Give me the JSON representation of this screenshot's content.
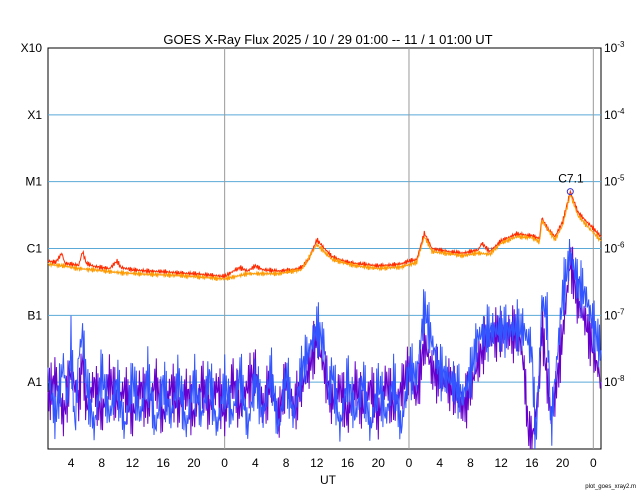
{
  "chart_data": {
    "type": "line",
    "title": "GOES X-Ray Flux   2025 / 10 / 29   01:00 -- 11 /  1   01:00   UT",
    "xlabel": "UT",
    "footer": "plot_goes_xray2.m",
    "x_range_hours": [
      0,
      72
    ],
    "x_ticks": [
      {
        "h": 3,
        "label": "4"
      },
      {
        "h": 7,
        "label": "8"
      },
      {
        "h": 11,
        "label": "12"
      },
      {
        "h": 15,
        "label": "16"
      },
      {
        "h": 19,
        "label": "20"
      },
      {
        "h": 23,
        "label": "0"
      },
      {
        "h": 27,
        "label": "4"
      },
      {
        "h": 31,
        "label": "8"
      },
      {
        "h": 35,
        "label": "12"
      },
      {
        "h": 39,
        "label": "16"
      },
      {
        "h": 43,
        "label": "20"
      },
      {
        "h": 47,
        "label": "0"
      },
      {
        "h": 51,
        "label": "4"
      },
      {
        "h": 55,
        "label": "8"
      },
      {
        "h": 59,
        "label": "12"
      },
      {
        "h": 63,
        "label": "16"
      },
      {
        "h": 67,
        "label": "20"
      },
      {
        "h": 71,
        "label": "0"
      }
    ],
    "day_boundaries_hours": [
      23,
      47,
      71
    ],
    "y_scale": "log",
    "ylim": [
      1e-09,
      0.001
    ],
    "left_labels": [
      {
        "value": 0.001,
        "label": "X10"
      },
      {
        "value": 0.0001,
        "label": "X1"
      },
      {
        "value": 1e-05,
        "label": "M1"
      },
      {
        "value": 1e-06,
        "label": "C1"
      },
      {
        "value": 1e-07,
        "label": "B1"
      },
      {
        "value": 1e-08,
        "label": "A1"
      }
    ],
    "right_labels": [
      {
        "value": 0.001,
        "base": "10",
        "exp": "-3"
      },
      {
        "value": 0.0001,
        "base": "10",
        "exp": "-4"
      },
      {
        "value": 1e-05,
        "base": "10",
        "exp": "-5"
      },
      {
        "value": 1e-06,
        "base": "10",
        "exp": "-6"
      },
      {
        "value": 1e-07,
        "base": "10",
        "exp": "-7"
      },
      {
        "value": 1e-08,
        "base": "10",
        "exp": "-8"
      }
    ],
    "gridlines": [
      0.0001,
      1e-05,
      1e-06,
      1e-07,
      1e-08
    ],
    "annotation": {
      "text": "C7.1",
      "h": 68.0,
      "value": 7.1e-06
    },
    "series": [
      {
        "color": "#ff2a00",
        "points": [
          [
            0,
            6.5e-07
          ],
          [
            1,
            6.2e-07
          ],
          [
            1.8,
            8.5e-07
          ],
          [
            2.2,
            6e-07
          ],
          [
            3,
            5.8e-07
          ],
          [
            4,
            5.6e-07
          ],
          [
            4.5,
            9e-07
          ],
          [
            5,
            6e-07
          ],
          [
            6,
            5.4e-07
          ],
          [
            7,
            5.2e-07
          ],
          [
            8,
            5e-07
          ],
          [
            9,
            6.5e-07
          ],
          [
            9.5,
            5.2e-07
          ],
          [
            11,
            4.8e-07
          ],
          [
            13,
            4.6e-07
          ],
          [
            15,
            4.5e-07
          ],
          [
            17,
            4.3e-07
          ],
          [
            19,
            4.2e-07
          ],
          [
            21,
            4e-07
          ],
          [
            23,
            3.8e-07
          ],
          [
            24,
            4.5e-07
          ],
          [
            25,
            5.2e-07
          ],
          [
            26,
            4.6e-07
          ],
          [
            27,
            5.5e-07
          ],
          [
            28,
            4.8e-07
          ],
          [
            30,
            4.6e-07
          ],
          [
            32,
            4.8e-07
          ],
          [
            33,
            5.2e-07
          ],
          [
            34,
            7e-07
          ],
          [
            35,
            1.35e-06
          ],
          [
            36,
            1e-06
          ],
          [
            37,
            7.5e-07
          ],
          [
            39,
            6.2e-07
          ],
          [
            41,
            5.8e-07
          ],
          [
            43,
            5.5e-07
          ],
          [
            45,
            5.7e-07
          ],
          [
            46,
            5.9e-07
          ],
          [
            47,
            6.5e-07
          ],
          [
            48,
            6.8e-07
          ],
          [
            49,
            1.7e-06
          ],
          [
            50,
            1e-06
          ],
          [
            52,
            9e-07
          ],
          [
            54,
            8.5e-07
          ],
          [
            56,
            9.5e-07
          ],
          [
            56.5,
            1.2e-06
          ],
          [
            57.5,
            9e-07
          ],
          [
            59,
            1.3e-06
          ],
          [
            61,
            1.65e-06
          ],
          [
            63,
            1.55e-06
          ],
          [
            64,
            1.4e-06
          ],
          [
            64.3,
            2.9e-06
          ],
          [
            65,
            2e-06
          ],
          [
            66,
            1.5e-06
          ],
          [
            67,
            2.5e-06
          ],
          [
            68,
            7.1e-06
          ],
          [
            69,
            3.5e-06
          ],
          [
            70,
            2.6e-06
          ],
          [
            71,
            2e-06
          ],
          [
            72,
            1.5e-06
          ]
        ]
      },
      {
        "color": "#ff9a00",
        "points": [
          [
            0,
            5.8e-07
          ],
          [
            2,
            5.5e-07
          ],
          [
            4,
            5e-07
          ],
          [
            6,
            4.8e-07
          ],
          [
            8,
            4.5e-07
          ],
          [
            10,
            4.3e-07
          ],
          [
            13,
            4.1e-07
          ],
          [
            16,
            4e-07
          ],
          [
            19,
            3.8e-07
          ],
          [
            23,
            3.5e-07
          ],
          [
            26,
            4.2e-07
          ],
          [
            30,
            4.2e-07
          ],
          [
            33,
            4.8e-07
          ],
          [
            35,
            1.15e-06
          ],
          [
            37,
            6.8e-07
          ],
          [
            40,
            5.5e-07
          ],
          [
            43,
            5e-07
          ],
          [
            46,
            5.3e-07
          ],
          [
            48,
            6.2e-07
          ],
          [
            49,
            1.5e-06
          ],
          [
            50,
            9e-07
          ],
          [
            54,
            7.8e-07
          ],
          [
            56,
            8.5e-07
          ],
          [
            57.5,
            8.2e-07
          ],
          [
            59,
            1.2e-06
          ],
          [
            61,
            1.5e-06
          ],
          [
            63,
            1.45e-06
          ],
          [
            64,
            1.25e-06
          ],
          [
            64.3,
            2.6e-06
          ],
          [
            66,
            1.35e-06
          ],
          [
            67,
            2.2e-06
          ],
          [
            68,
            6.5e-06
          ],
          [
            69,
            3.1e-06
          ],
          [
            70,
            2.3e-06
          ],
          [
            72,
            1.3e-06
          ]
        ]
      },
      {
        "color": "#6600cc",
        "points": [
          [
            0,
            6e-09
          ],
          [
            1,
            1.2e-08
          ],
          [
            2,
            3e-09
          ],
          [
            3,
            1.5e-08
          ],
          [
            4,
            5e-09
          ],
          [
            4.5,
            2.5e-08
          ],
          [
            5,
            4e-09
          ],
          [
            6,
            1e-08
          ],
          [
            7,
            3e-09
          ],
          [
            8,
            1.2e-08
          ],
          [
            9,
            5e-09
          ],
          [
            10,
            8e-09
          ],
          [
            11,
            3e-09
          ],
          [
            12,
            9e-09
          ],
          [
            13,
            4e-09
          ],
          [
            14,
            1.1e-08
          ],
          [
            15,
            3e-09
          ],
          [
            16,
            9e-09
          ],
          [
            17,
            4e-09
          ],
          [
            18,
            8e-09
          ],
          [
            19,
            3e-09
          ],
          [
            20,
            1e-08
          ],
          [
            21,
            4e-09
          ],
          [
            22,
            9e-09
          ],
          [
            23,
            3e-09
          ],
          [
            24,
            1.2e-08
          ],
          [
            25,
            4e-09
          ],
          [
            26,
            9e-09
          ],
          [
            27,
            1.5e-08
          ],
          [
            28,
            4e-09
          ],
          [
            29,
            1e-08
          ],
          [
            30,
            3e-09
          ],
          [
            31,
            1.1e-08
          ],
          [
            32,
            4e-09
          ],
          [
            33,
            9e-09
          ],
          [
            34,
            1.6e-08
          ],
          [
            35,
            4.5e-08
          ],
          [
            36,
            1.5e-08
          ],
          [
            37,
            5e-09
          ],
          [
            38,
            9e-09
          ],
          [
            39,
            3e-09
          ],
          [
            40,
            1e-08
          ],
          [
            41,
            4e-09
          ],
          [
            42,
            9e-09
          ],
          [
            43,
            3e-09
          ],
          [
            44,
            1.1e-08
          ],
          [
            45,
            4e-09
          ],
          [
            46,
            8e-09
          ],
          [
            47,
            1.5e-08
          ],
          [
            48,
            6e-09
          ],
          [
            49,
            4e-08
          ],
          [
            50,
            1.5e-08
          ],
          [
            51,
            1.2e-08
          ],
          [
            52,
            1e-08
          ],
          [
            53,
            7e-09
          ],
          [
            54,
            4e-09
          ],
          [
            55,
            8e-09
          ],
          [
            56,
            2e-08
          ],
          [
            57,
            4.5e-08
          ],
          [
            58,
            5e-08
          ],
          [
            60,
            5.5e-08
          ],
          [
            61,
            5.2e-08
          ],
          [
            61.5,
            4e-08
          ],
          [
            62,
            1.5e-08
          ],
          [
            62.5,
            2e-09
          ],
          [
            63,
            1.2e-09
          ],
          [
            64,
            1e-08
          ],
          [
            64.3,
            8e-08
          ],
          [
            65,
            1e-08
          ],
          [
            65.5,
            3e-09
          ],
          [
            66,
            6e-09
          ],
          [
            67,
            5e-08
          ],
          [
            68,
            6.5e-07
          ],
          [
            69,
            1.6e-07
          ],
          [
            70,
            8e-08
          ],
          [
            71,
            3e-08
          ],
          [
            72,
            1e-08
          ]
        ]
      },
      {
        "color": "#3355ff",
        "points": [
          [
            0,
            1.2e-08
          ],
          [
            1,
            3e-09
          ],
          [
            2,
            2e-08
          ],
          [
            2.5,
            5e-09
          ],
          [
            3,
            4e-08
          ],
          [
            3.5,
            2e-09
          ],
          [
            4,
            2.5e-08
          ],
          [
            4.5,
            5.5e-08
          ],
          [
            5,
            1e-08
          ],
          [
            6,
            2e-09
          ],
          [
            7,
            1.5e-08
          ],
          [
            8,
            3e-09
          ],
          [
            9,
            1e-08
          ],
          [
            10,
            2e-09
          ],
          [
            11,
            1.2e-08
          ],
          [
            12,
            3e-09
          ],
          [
            13,
            1.3e-08
          ],
          [
            14,
            2e-09
          ],
          [
            15,
            1e-08
          ],
          [
            16,
            3e-09
          ],
          [
            17,
            1.2e-08
          ],
          [
            18,
            2e-09
          ],
          [
            19,
            1.1e-08
          ],
          [
            20,
            3e-09
          ],
          [
            21,
            1.3e-08
          ],
          [
            22,
            2e-09
          ],
          [
            23,
            1e-08
          ],
          [
            24,
            3e-09
          ],
          [
            25,
            1.4e-08
          ],
          [
            26,
            2e-09
          ],
          [
            27,
            1.2e-08
          ],
          [
            28,
            3e-09
          ],
          [
            29,
            1.5e-08
          ],
          [
            30,
            2e-09
          ],
          [
            31,
            1.3e-08
          ],
          [
            32,
            3e-09
          ],
          [
            33,
            1.5e-08
          ],
          [
            34,
            3e-08
          ],
          [
            35,
            6.5e-08
          ],
          [
            36,
            3.5e-08
          ],
          [
            36.5,
            6e-09
          ],
          [
            37,
            1.5e-08
          ],
          [
            38,
            2e-09
          ],
          [
            39,
            1.2e-08
          ],
          [
            40,
            3e-09
          ],
          [
            41,
            1.1e-08
          ],
          [
            42,
            2e-09
          ],
          [
            43,
            1e-08
          ],
          [
            44,
            3e-09
          ],
          [
            45,
            1.1e-08
          ],
          [
            46,
            2e-09
          ],
          [
            47,
            1.6e-08
          ],
          [
            48,
            1.2e-08
          ],
          [
            49,
            1.3e-07
          ],
          [
            50,
            4e-08
          ],
          [
            51,
            1.5e-08
          ],
          [
            52,
            1.2e-08
          ],
          [
            53,
            9e-09
          ],
          [
            54,
            6e-09
          ],
          [
            55,
            1.3e-08
          ],
          [
            56,
            5e-08
          ],
          [
            57,
            5.5e-08
          ],
          [
            58,
            6e-08
          ],
          [
            60,
            6e-08
          ],
          [
            61,
            6.5e-08
          ],
          [
            62,
            6e-08
          ],
          [
            63,
            3e-08
          ],
          [
            63.5,
            1.3e-09
          ],
          [
            64,
            2e-08
          ],
          [
            64.3,
            1.7e-07
          ],
          [
            65,
            9e-08
          ],
          [
            65.5,
            2e-09
          ],
          [
            66,
            1e-08
          ],
          [
            67,
            2e-07
          ],
          [
            68,
            8.5e-07
          ],
          [
            69,
            3e-07
          ],
          [
            70,
            2e-07
          ],
          [
            71,
            7e-08
          ],
          [
            72,
            3e-08
          ]
        ]
      }
    ]
  }
}
